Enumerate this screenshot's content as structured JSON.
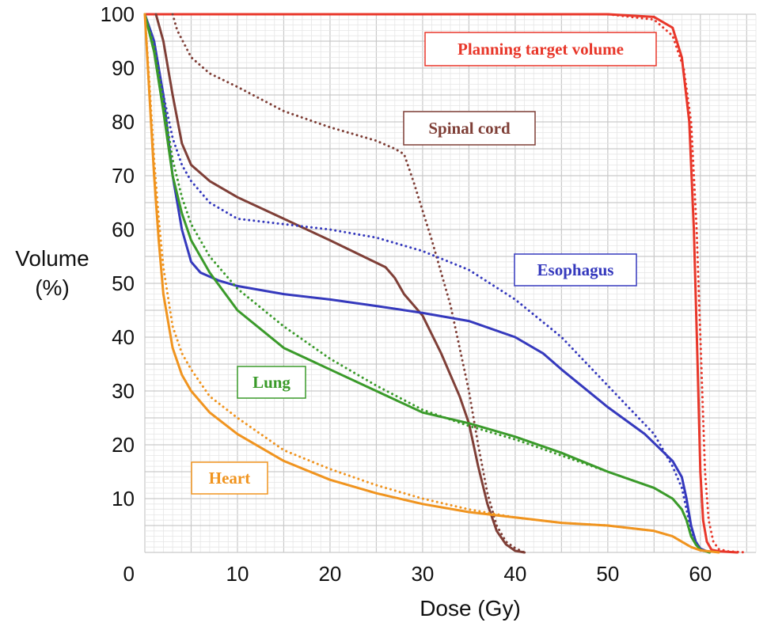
{
  "chart_data": {
    "type": "line",
    "title": "",
    "xlabel": "Dose (Gy)",
    "ylabel_lines": [
      "Volume",
      "(%)"
    ],
    "xlim": [
      0,
      66
    ],
    "ylim": [
      0,
      100
    ],
    "x_ticks": [
      0,
      10,
      20,
      30,
      40,
      50,
      60
    ],
    "y_ticks": [
      0,
      10,
      20,
      30,
      40,
      50,
      60,
      70,
      80,
      90,
      100
    ],
    "grid": true,
    "series": [
      {
        "name": "Planning target volume",
        "color": "#e8372a",
        "style": "solid",
        "points": [
          [
            0,
            100
          ],
          [
            10,
            100
          ],
          [
            20,
            100
          ],
          [
            30,
            100
          ],
          [
            40,
            100
          ],
          [
            50,
            100
          ],
          [
            55,
            99.5
          ],
          [
            57,
            97.5
          ],
          [
            58,
            92
          ],
          [
            58.8,
            80
          ],
          [
            59.3,
            60
          ],
          [
            59.7,
            35
          ],
          [
            60,
            15
          ],
          [
            60.3,
            6
          ],
          [
            60.7,
            2
          ],
          [
            61.2,
            0.5
          ],
          [
            62,
            0.2
          ],
          [
            64,
            0
          ]
        ]
      },
      {
        "name": "Planning target volume",
        "color": "#e8372a",
        "style": "dotted",
        "points": [
          [
            0,
            100
          ],
          [
            10,
            100
          ],
          [
            20,
            100
          ],
          [
            30,
            100
          ],
          [
            40,
            100
          ],
          [
            50,
            100
          ],
          [
            55,
            99
          ],
          [
            57,
            96
          ],
          [
            58.2,
            90
          ],
          [
            59,
            80
          ],
          [
            59.6,
            60
          ],
          [
            60.1,
            35
          ],
          [
            60.5,
            15
          ],
          [
            60.9,
            6
          ],
          [
            61.4,
            2
          ],
          [
            62,
            0.6
          ],
          [
            63,
            0.2
          ],
          [
            65,
            0
          ]
        ]
      },
      {
        "name": "Spinal cord",
        "color": "#7f3f37",
        "style": "solid",
        "points": [
          [
            1.2,
            100
          ],
          [
            2,
            95
          ],
          [
            3,
            85
          ],
          [
            4,
            76
          ],
          [
            5,
            72
          ],
          [
            7,
            69
          ],
          [
            10,
            66
          ],
          [
            15,
            62
          ],
          [
            20,
            58
          ],
          [
            23,
            55.5
          ],
          [
            26,
            53
          ],
          [
            27,
            51
          ],
          [
            28,
            48
          ],
          [
            30,
            44
          ],
          [
            32,
            37
          ],
          [
            34,
            29
          ],
          [
            35,
            24
          ],
          [
            36,
            16
          ],
          [
            37,
            9
          ],
          [
            38,
            4
          ],
          [
            39,
            1.5
          ],
          [
            40,
            0.3
          ],
          [
            41,
            0
          ]
        ]
      },
      {
        "name": "Spinal cord",
        "color": "#7f3f37",
        "style": "dotted",
        "points": [
          [
            3,
            100
          ],
          [
            3.5,
            97
          ],
          [
            5,
            92
          ],
          [
            7,
            89
          ],
          [
            10,
            86.5
          ],
          [
            15,
            82
          ],
          [
            20,
            79
          ],
          [
            25,
            76.5
          ],
          [
            27,
            75
          ],
          [
            28,
            74
          ],
          [
            29,
            69
          ],
          [
            31,
            58
          ],
          [
            33,
            46
          ],
          [
            35,
            30
          ],
          [
            36,
            20
          ],
          [
            37,
            11
          ],
          [
            38,
            5
          ],
          [
            39,
            2
          ],
          [
            40,
            0.8
          ],
          [
            41,
            0
          ]
        ]
      },
      {
        "name": "Esophagus",
        "color": "#3539bd",
        "style": "solid",
        "points": [
          [
            0,
            100
          ],
          [
            1,
            95
          ],
          [
            2,
            85
          ],
          [
            3,
            70
          ],
          [
            4,
            60
          ],
          [
            5,
            54
          ],
          [
            6,
            52
          ],
          [
            8,
            50.5
          ],
          [
            10,
            49.5
          ],
          [
            15,
            48
          ],
          [
            20,
            47
          ],
          [
            25,
            45.8
          ],
          [
            30,
            44.5
          ],
          [
            35,
            43
          ],
          [
            40,
            40
          ],
          [
            43,
            37
          ],
          [
            45,
            34
          ],
          [
            50,
            27
          ],
          [
            54,
            22
          ],
          [
            57,
            17
          ],
          [
            58,
            14
          ],
          [
            58.5,
            10
          ],
          [
            59,
            5
          ],
          [
            59.5,
            2
          ],
          [
            60,
            0.7
          ],
          [
            61,
            0
          ]
        ]
      },
      {
        "name": "Esophagus",
        "color": "#3539bd",
        "style": "dotted",
        "points": [
          [
            0,
            100
          ],
          [
            1,
            94
          ],
          [
            2,
            85
          ],
          [
            3,
            77
          ],
          [
            4,
            72
          ],
          [
            5,
            69
          ],
          [
            7,
            65
          ],
          [
            10,
            62
          ],
          [
            15,
            61
          ],
          [
            20,
            60
          ],
          [
            25,
            58.5
          ],
          [
            30,
            56
          ],
          [
            35,
            52.5
          ],
          [
            40,
            47
          ],
          [
            45,
            40
          ],
          [
            50,
            31
          ],
          [
            55,
            22
          ],
          [
            57,
            16
          ],
          [
            58,
            12
          ],
          [
            58.5,
            8
          ],
          [
            59,
            4
          ],
          [
            59.5,
            2
          ],
          [
            60,
            0.7
          ],
          [
            61,
            0
          ]
        ]
      },
      {
        "name": "Lung",
        "color": "#3a9a2a",
        "style": "solid",
        "points": [
          [
            0,
            100
          ],
          [
            1,
            93
          ],
          [
            2,
            82
          ],
          [
            3,
            70
          ],
          [
            4,
            63
          ],
          [
            5,
            58
          ],
          [
            7,
            52
          ],
          [
            10,
            45
          ],
          [
            15,
            38
          ],
          [
            20,
            34
          ],
          [
            25,
            30
          ],
          [
            30,
            26
          ],
          [
            35,
            24
          ],
          [
            40,
            21.5
          ],
          [
            45,
            18.5
          ],
          [
            50,
            15
          ],
          [
            55,
            12
          ],
          [
            57,
            10
          ],
          [
            58,
            8
          ],
          [
            58.5,
            6
          ],
          [
            59,
            3
          ],
          [
            59.5,
            1.5
          ],
          [
            60,
            0.5
          ],
          [
            61,
            0
          ]
        ]
      },
      {
        "name": "Lung",
        "color": "#3a9a2a",
        "style": "dotted",
        "points": [
          [
            0,
            100
          ],
          [
            1,
            94
          ],
          [
            2,
            84
          ],
          [
            3,
            73
          ],
          [
            4,
            66
          ],
          [
            5,
            61
          ],
          [
            7,
            55
          ],
          [
            10,
            49
          ],
          [
            15,
            42
          ],
          [
            20,
            36
          ],
          [
            25,
            31
          ],
          [
            30,
            26.5
          ],
          [
            35,
            23.5
          ],
          [
            40,
            21
          ],
          [
            45,
            18
          ],
          [
            50,
            15
          ],
          [
            55,
            12
          ],
          [
            57,
            10
          ],
          [
            58,
            8
          ],
          [
            58.5,
            6
          ],
          [
            59,
            3
          ],
          [
            59.5,
            1.5
          ],
          [
            60,
            0.5
          ],
          [
            61,
            0
          ]
        ]
      },
      {
        "name": "Heart",
        "color": "#f0941f",
        "style": "solid",
        "points": [
          [
            0,
            100
          ],
          [
            0.5,
            85
          ],
          [
            1,
            70
          ],
          [
            1.5,
            58
          ],
          [
            2,
            48
          ],
          [
            3,
            38
          ],
          [
            4,
            33
          ],
          [
            5,
            30
          ],
          [
            7,
            26
          ],
          [
            10,
            22
          ],
          [
            15,
            17
          ],
          [
            20,
            13.5
          ],
          [
            25,
            11
          ],
          [
            30,
            9
          ],
          [
            35,
            7.5
          ],
          [
            40,
            6.5
          ],
          [
            45,
            5.5
          ],
          [
            50,
            5
          ],
          [
            55,
            4
          ],
          [
            57,
            3
          ],
          [
            58,
            2
          ],
          [
            59,
            1
          ],
          [
            60,
            0.4
          ],
          [
            62,
            0
          ]
        ]
      },
      {
        "name": "Heart",
        "color": "#f0941f",
        "style": "dotted",
        "points": [
          [
            0,
            100
          ],
          [
            0.5,
            87
          ],
          [
            1,
            73
          ],
          [
            1.5,
            62
          ],
          [
            2,
            53
          ],
          [
            3,
            42
          ],
          [
            4,
            37
          ],
          [
            5,
            34
          ],
          [
            7,
            29
          ],
          [
            10,
            25
          ],
          [
            15,
            19
          ],
          [
            20,
            15.5
          ],
          [
            25,
            12.5
          ],
          [
            30,
            10
          ],
          [
            35,
            8
          ],
          [
            40,
            6.5
          ],
          [
            45,
            5.5
          ],
          [
            50,
            5
          ],
          [
            55,
            4
          ],
          [
            57,
            3
          ],
          [
            58,
            2
          ],
          [
            59,
            1
          ],
          [
            60,
            0.4
          ],
          [
            62,
            0
          ]
        ]
      }
    ],
    "annotations": [
      {
        "text": "Planning target volume",
        "color": "#e8372a"
      },
      {
        "text": "Spinal cord",
        "color": "#7f3f37"
      },
      {
        "text": "Esophagus",
        "color": "#3539bd"
      },
      {
        "text": "Lung",
        "color": "#3a9a2a"
      },
      {
        "text": "Heart",
        "color": "#f0941f"
      }
    ]
  }
}
